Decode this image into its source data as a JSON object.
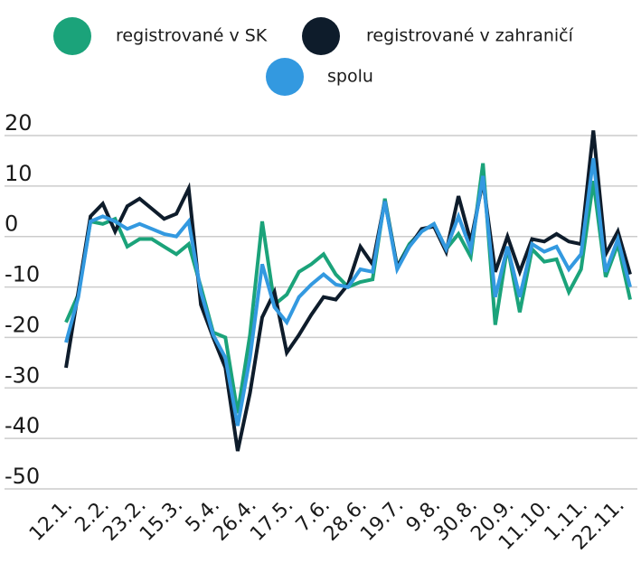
{
  "chart_data": {
    "type": "line",
    "categories": [
      "12.1.",
      null,
      null,
      "2.2.",
      null,
      null,
      "23.2.",
      null,
      null,
      "15.3.",
      null,
      null,
      "5.4.",
      null,
      null,
      "26.4.",
      null,
      null,
      "17.5.",
      null,
      null,
      "7.6.",
      null,
      null,
      "28.6.",
      null,
      null,
      "19.7.",
      null,
      null,
      "9.8.",
      null,
      null,
      "30.8.",
      null,
      null,
      "20.9.",
      null,
      null,
      "11.10.",
      null,
      null,
      "1.11.",
      null,
      null,
      "22.11.",
      null
    ],
    "series": [
      {
        "name": "registrované v SK",
        "color": "#1ba37a",
        "values": [
          -17,
          -11.5,
          3,
          2.5,
          3.5,
          -2,
          -0.5,
          -0.5,
          -2,
          -3.5,
          -1.5,
          -10,
          -19,
          -20,
          -35,
          -19.5,
          3,
          -13.5,
          -11.5,
          -7,
          -5.5,
          -3.5,
          -7.5,
          -10,
          -9,
          -8.5,
          7.5,
          -6,
          -1.5,
          1,
          2.5,
          -2.5,
          0.5,
          -4,
          14.5,
          -17.5,
          -2,
          -15,
          -2.5,
          -5,
          -4.5,
          -11,
          -6.5,
          11,
          -8,
          -1.5,
          -12.5
        ]
      },
      {
        "name": "registrované v zahraničí",
        "color": "#0e1c2b",
        "values": [
          -26,
          -11,
          4,
          6.5,
          1,
          6,
          7.5,
          5.5,
          3.5,
          4.5,
          9.5,
          -13.5,
          -20,
          -26,
          -42.5,
          -31,
          -16,
          -11,
          -23,
          -19.5,
          -15.5,
          -12,
          -12.5,
          -9.5,
          -2,
          -5.5,
          7,
          -6,
          -2,
          1.5,
          2,
          -3,
          8,
          -1,
          11,
          -7,
          0,
          -7,
          -0.5,
          -1,
          0.5,
          -1,
          -1.5,
          21,
          -3.5,
          1,
          -7.5
        ]
      },
      {
        "name": "spolu",
        "color": "#3399e0",
        "values": [
          -21,
          -12,
          3,
          4,
          3,
          1.5,
          2.5,
          1.5,
          0.5,
          0,
          3,
          -11,
          -19.5,
          -24,
          -37.5,
          -24,
          -5.5,
          -14,
          -17,
          -12,
          -9.5,
          -7.5,
          -9.5,
          -10,
          -6.5,
          -7,
          7,
          -6.5,
          -2,
          1,
          2.5,
          -2.5,
          4,
          -2.5,
          12,
          -12,
          -2,
          -12,
          -1.5,
          -3,
          -2,
          -6.5,
          -3.5,
          15.5,
          -7,
          -0.5,
          -10
        ]
      }
    ],
    "ylim": [
      -50,
      20
    ],
    "yticks": [
      20,
      10,
      0,
      -10,
      -20,
      -30,
      -40,
      -50
    ],
    "grid": true
  }
}
